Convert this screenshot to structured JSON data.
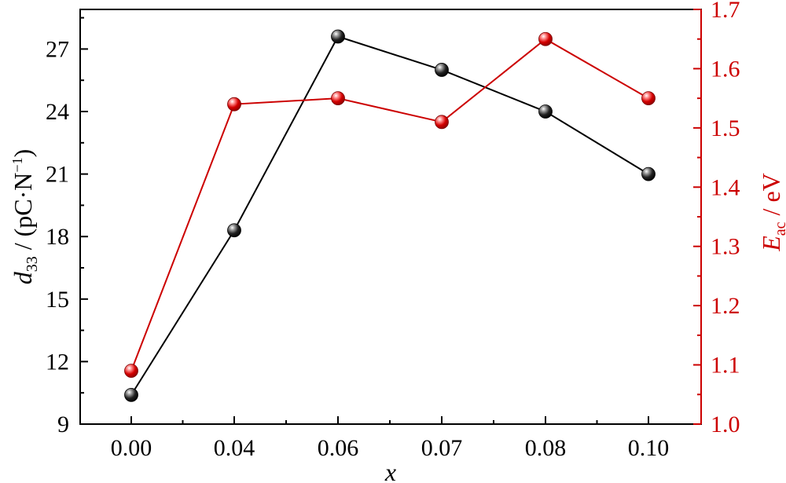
{
  "chart_data": {
    "type": "line",
    "categories": [
      "0.00",
      "0.04",
      "0.06",
      "0.07",
      "0.08",
      "0.10"
    ],
    "xlabel": "x",
    "y_left": {
      "label_main": "d",
      "label_sub": "33",
      "label_rest": " / (pC·N",
      "label_sup": "−1",
      "label_close": ")",
      "ylim": [
        9,
        28.9
      ],
      "ticks": [
        "9",
        "12",
        "15",
        "18",
        "21",
        "24",
        "27"
      ],
      "color": "#000000"
    },
    "y_right": {
      "label_main": "E",
      "label_sub": "ac",
      "label_rest": " / eV",
      "ylim": [
        1.0,
        1.7
      ],
      "ticks": [
        "1.0",
        "1.1",
        "1.2",
        "1.3",
        "1.4",
        "1.5",
        "1.6",
        "1.7"
      ],
      "color": "#cc0000"
    },
    "series": [
      {
        "axis": "left",
        "color": "#000000",
        "values": [
          10.4,
          18.3,
          27.6,
          26.0,
          24.0,
          21.0
        ]
      },
      {
        "axis": "right",
        "color": "#cc0000",
        "values": [
          1.09,
          1.54,
          1.55,
          1.51,
          1.65,
          1.55
        ]
      }
    ],
    "grid": false,
    "legend": "none"
  }
}
